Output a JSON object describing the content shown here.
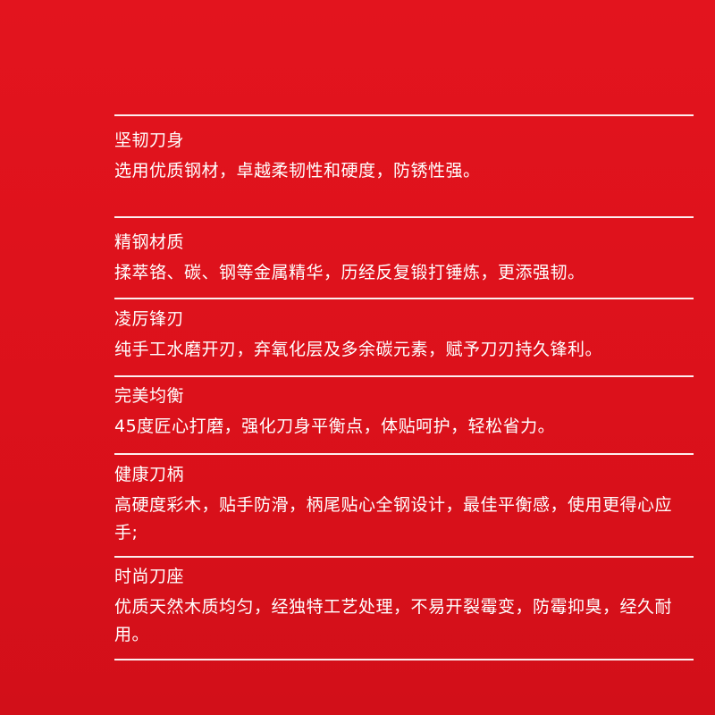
{
  "sections": [
    {
      "title": "坚韧刀身",
      "text": "选用优质钢材，卓越柔韧性和硬度，防锈性强。"
    },
    {
      "title": "精钢材质",
      "text": "揉萃铬、碳、钢等金属精华，历经反复锻打锤炼，更添强韧。"
    },
    {
      "title": "凌厉锋刃",
      "text": "纯手工水磨开刃，弃氧化层及多余碳元素，赋予刀刃持久锋利。"
    },
    {
      "title": "完美均衡",
      "text": "45度匠心打磨，强化刀身平衡点，体贴呵护，轻松省力。"
    },
    {
      "title": "健康刀柄",
      "text": "高硬度彩木，贴手防滑，柄尾贴心全钢设计，最佳平衡感，使用更得心应手;"
    },
    {
      "title": "时尚刀座",
      "text": "优质天然木质均匀，经独特工艺处理，不易开裂霉变，防霉抑臭，经久耐用。"
    }
  ]
}
